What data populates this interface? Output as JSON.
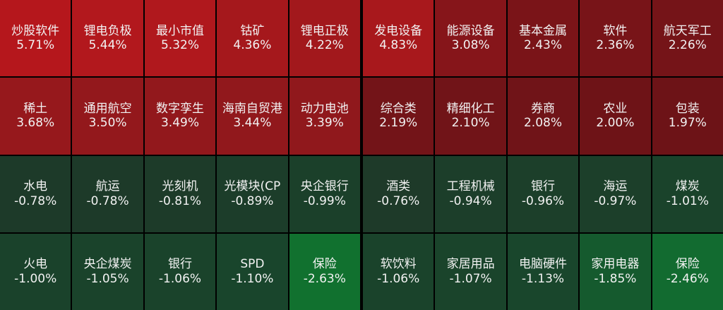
{
  "colors": {
    "background": "#000000",
    "text": "#f2f2f2",
    "up_strong": "#b11a1e",
    "up_mid": "#8f1a1e",
    "up_weak": "#6b1217",
    "down_weak": "#1e3d2a",
    "down_mid": "#145c2f",
    "down_strong": "#0f7a36"
  },
  "left_panel": {
    "tiles": [
      {
        "name": "炒股软件",
        "pct": "5.71%",
        "color": "#b5171c"
      },
      {
        "name": "锂电负极",
        "pct": "5.44%",
        "color": "#b2181d"
      },
      {
        "name": "最小市值",
        "pct": "5.32%",
        "color": "#b0181d"
      },
      {
        "name": "钴矿",
        "pct": "4.36%",
        "color": "#a5181c"
      },
      {
        "name": "锂电正极",
        "pct": "4.22%",
        "color": "#a2181c"
      },
      {
        "name": "稀土",
        "pct": "3.68%",
        "color": "#96181c"
      },
      {
        "name": "通用航空",
        "pct": "3.50%",
        "color": "#93181c"
      },
      {
        "name": "数字孪生",
        "pct": "3.49%",
        "color": "#92181c"
      },
      {
        "name": "海南自贸港",
        "pct": "3.44%",
        "color": "#91181c"
      },
      {
        "name": "动力电池",
        "pct": "3.39%",
        "color": "#90181c"
      },
      {
        "name": "水电",
        "pct": "-0.78%",
        "color": "#1d3a29"
      },
      {
        "name": "航运",
        "pct": "-0.78%",
        "color": "#1d3a29"
      },
      {
        "name": "光刻机",
        "pct": "-0.81%",
        "color": "#1d3b29"
      },
      {
        "name": "光模块(CP",
        "pct": "-0.89%",
        "color": "#1c3d2a"
      },
      {
        "name": "央企银行",
        "pct": "-0.99%",
        "color": "#1b402a"
      },
      {
        "name": "火电",
        "pct": "-1.00%",
        "color": "#1a422b"
      },
      {
        "name": "央企煤炭",
        "pct": "-1.05%",
        "color": "#1a432b"
      },
      {
        "name": "银行",
        "pct": "-1.06%",
        "color": "#1a432b"
      },
      {
        "name": "SPD",
        "pct": "-1.10%",
        "color": "#19452c"
      },
      {
        "name": "保险",
        "pct": "-2.63%",
        "color": "#11712f"
      }
    ]
  },
  "right_panel": {
    "tiles": [
      {
        "name": "发电设备",
        "pct": "4.83%",
        "color": "#a8181c"
      },
      {
        "name": "能源设备",
        "pct": "3.08%",
        "color": "#86151a"
      },
      {
        "name": "基本金属",
        "pct": "2.43%",
        "color": "#7a1418"
      },
      {
        "name": "软件",
        "pct": "2.36%",
        "color": "#781418"
      },
      {
        "name": "航天军工",
        "pct": "2.26%",
        "color": "#751418"
      },
      {
        "name": "综合类",
        "pct": "2.19%",
        "color": "#731418"
      },
      {
        "name": "精细化工",
        "pct": "2.10%",
        "color": "#711418"
      },
      {
        "name": "券商",
        "pct": "2.08%",
        "color": "#701418"
      },
      {
        "name": "农业",
        "pct": "2.00%",
        "color": "#6e1317"
      },
      {
        "name": "包装",
        "pct": "1.97%",
        "color": "#6d1317"
      },
      {
        "name": "酒类",
        "pct": "-0.76%",
        "color": "#1e3a29"
      },
      {
        "name": "工程机械",
        "pct": "-0.94%",
        "color": "#1c3e2a"
      },
      {
        "name": "银行",
        "pct": "-0.96%",
        "color": "#1c3f2a"
      },
      {
        "name": "海运",
        "pct": "-0.97%",
        "color": "#1c3f2a"
      },
      {
        "name": "煤炭",
        "pct": "-1.01%",
        "color": "#1a432b"
      },
      {
        "name": "软饮料",
        "pct": "-1.06%",
        "color": "#1a432b"
      },
      {
        "name": "家居用品",
        "pct": "-1.07%",
        "color": "#1a442b"
      },
      {
        "name": "电脑硬件",
        "pct": "-1.13%",
        "color": "#19462c"
      },
      {
        "name": "家用电器",
        "pct": "-1.85%",
        "color": "#155a2e"
      },
      {
        "name": "保险",
        "pct": "-2.46%",
        "color": "#126b30"
      }
    ]
  }
}
